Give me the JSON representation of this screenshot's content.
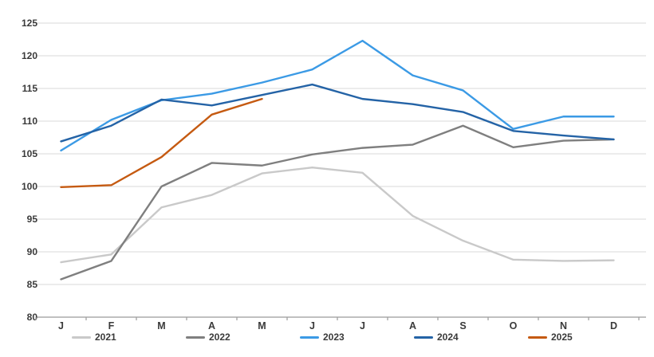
{
  "chart_data": {
    "type": "line",
    "x_categories": [
      "J",
      "F",
      "M",
      "A",
      "M",
      "J",
      "J",
      "A",
      "S",
      "O",
      "N",
      "D"
    ],
    "y_axis": {
      "min": 80,
      "max": 125,
      "step": 5,
      "tick_labels": [
        "80",
        "85",
        "90",
        "95",
        "100",
        "105",
        "110",
        "115",
        "120",
        "125"
      ]
    },
    "grid": true,
    "legend_position": "bottom",
    "colors": {
      "gridline": "#d9d9d9",
      "axis_line": "#9b9b9b",
      "axis_text": "#3a3a3a"
    },
    "series": [
      {
        "name": "2021",
        "color": "#c9c9c9",
        "values": [
          88.4,
          89.6,
          96.8,
          98.7,
          102.0,
          102.9,
          102.1,
          95.5,
          91.7,
          88.8,
          88.6,
          88.7
        ]
      },
      {
        "name": "2022",
        "color": "#7f7f7f",
        "values": [
          85.8,
          88.6,
          100.0,
          103.6,
          103.2,
          104.9,
          105.9,
          106.4,
          109.3,
          106.0,
          107.0,
          107.2
        ]
      },
      {
        "name": "2023",
        "color": "#3b9ae5",
        "values": [
          105.5,
          110.2,
          113.2,
          114.2,
          115.9,
          117.9,
          122.3,
          117.0,
          114.7,
          108.8,
          110.7,
          110.7
        ]
      },
      {
        "name": "2024",
        "color": "#2463a6",
        "values": [
          106.9,
          109.3,
          113.3,
          112.4,
          114.0,
          115.6,
          113.4,
          112.6,
          111.4,
          108.5,
          107.8,
          107.2
        ]
      },
      {
        "name": "2025",
        "color": "#c55a11",
        "values": [
          99.9,
          100.2,
          104.5,
          111.0,
          113.4
        ]
      }
    ]
  }
}
